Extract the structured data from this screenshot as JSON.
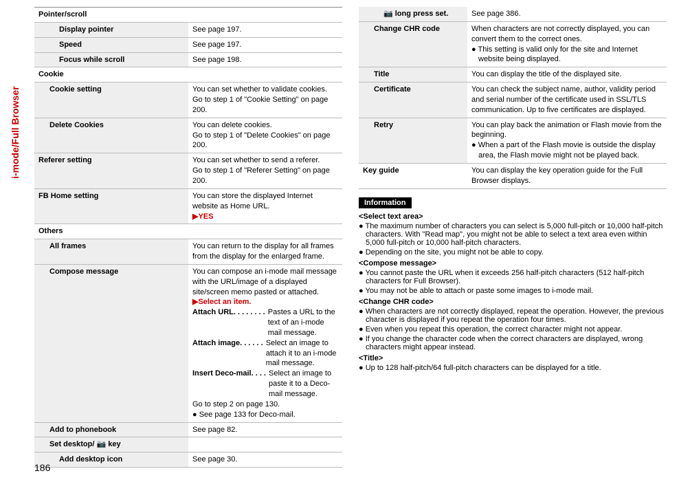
{
  "sideTab": "i-mode/Full Browser",
  "pageNumber": "186",
  "leftTable": {
    "sections": [
      {
        "header": "Pointer/scroll",
        "indent": 1,
        "rows": [
          {
            "label": "Display pointer",
            "indent": 2,
            "desc": "See page 197."
          },
          {
            "label": "Speed",
            "indent": 2,
            "desc": "See page 197."
          },
          {
            "label": "Focus while scroll",
            "indent": 2,
            "desc": "See page 198."
          }
        ]
      },
      {
        "header": "Cookie",
        "indent": 0,
        "rows": [
          {
            "label": "Cookie setting",
            "indent": 1,
            "desc": "You can set whether to validate cookies.\nGo to step 1 of \"Cookie Setting\" on page 200."
          },
          {
            "label": "Delete Cookies",
            "indent": 1,
            "desc": "You can delete cookies.\nGo to step 1 of \"Delete Cookies\" on page 200."
          }
        ]
      },
      {
        "rows": [
          {
            "label": "Referer setting",
            "indent": 0,
            "desc": "You can set whether to send a referer.\nGo to step 1 of \"Referer Setting\" on page 200."
          },
          {
            "label": "FB Home setting",
            "indent": 0,
            "desc": "You can store the displayed Internet website as Home URL.",
            "yes": "▶YES"
          }
        ]
      },
      {
        "header": "Others",
        "indent": 0,
        "rows": [
          {
            "label": "All frames",
            "indent": 1,
            "desc": "You can return to the display for all frames from the display for the enlarged frame."
          },
          {
            "label": "Compose message",
            "indent": 1,
            "desc": "You can compose an i-mode mail message with the URL/image of a displayed site/screen memo pasted or attached.",
            "yes": "▶Select an item.",
            "options": [
              {
                "k": "Attach URL",
                "dots": ". . . . . . . .",
                "v": "Pastes a URL to the text of an i-mode mail message."
              },
              {
                "k": "Attach image",
                "dots": " . . . . . .",
                "v": "Select an image to attach it to an i-mode mail message."
              },
              {
                "k": "Insert Deco-mail",
                "dots": ". . . .",
                "v": "Select an image to paste it to a Deco-mail message."
              }
            ],
            "tail": "Go to step 2 on page 130.",
            "bullets": [
              "See page 133 for Deco-mail."
            ]
          },
          {
            "label": "Add to phonebook",
            "indent": 1,
            "desc": "See page 82."
          },
          {
            "label": "Set desktop/ 📷 key",
            "indent": 1,
            "desc": ""
          },
          {
            "label": "Add desktop icon",
            "indent": 2,
            "desc": "See page 30."
          }
        ]
      }
    ]
  },
  "rightTable": {
    "rows": [
      {
        "label": "📷 long press set.",
        "indent": 2,
        "desc": "See page 386."
      },
      {
        "label": "Change CHR code",
        "indent": 1,
        "desc": "When characters are not correctly displayed, you can convert them to the correct ones.",
        "bullets": [
          "This setting is valid only for the site and Internet website being displayed."
        ]
      },
      {
        "label": "Title",
        "indent": 1,
        "desc": "You can display the title of the displayed site."
      },
      {
        "label": "Certificate",
        "indent": 1,
        "desc": "You can check the subject name, author, validity period and serial number of the certificate used in SSL/TLS communication. Up to five certificates are displayed."
      },
      {
        "label": "Retry",
        "indent": 1,
        "desc": "You can play back the animation or Flash movie from the beginning.",
        "bullets": [
          "When a part of the Flash movie is outside the display area, the Flash movie might not be played back."
        ]
      },
      {
        "label": "Key guide",
        "indent": 0,
        "nobg": true,
        "desc": "You can display the key operation guide for the Full Browser displays."
      }
    ]
  },
  "info": {
    "heading": "Information",
    "groups": [
      {
        "title": "<Select text area>",
        "items": [
          "The maximum number of characters you can select is 5,000 full-pitch or 10,000 half-pitch characters. With \"Read map\", you might not be able to select a text area even within 5,000 full-pitch or 10,000 half-pitch characters.",
          "Depending on the site, you might not be able to copy."
        ]
      },
      {
        "title": "<Compose message>",
        "items": [
          "You cannot paste the URL when it exceeds 256 half-pitch characters (512 half-pitch characters for Full Browser).",
          "You may not be able to attach or paste some images to i-mode mail."
        ]
      },
      {
        "title": "<Change CHR code>",
        "items": [
          "When characters are not correctly displayed, repeat the operation. However, the previous character is displayed if you repeat the operation four times.",
          "Even when you repeat this operation, the correct character might not appear.",
          "If you change the character code when the correct characters are displayed, wrong characters might appear instead."
        ]
      },
      {
        "title": "<Title>",
        "items": [
          "Up to 128 half-pitch/64 full-pitch characters can be displayed for a title."
        ]
      }
    ]
  }
}
